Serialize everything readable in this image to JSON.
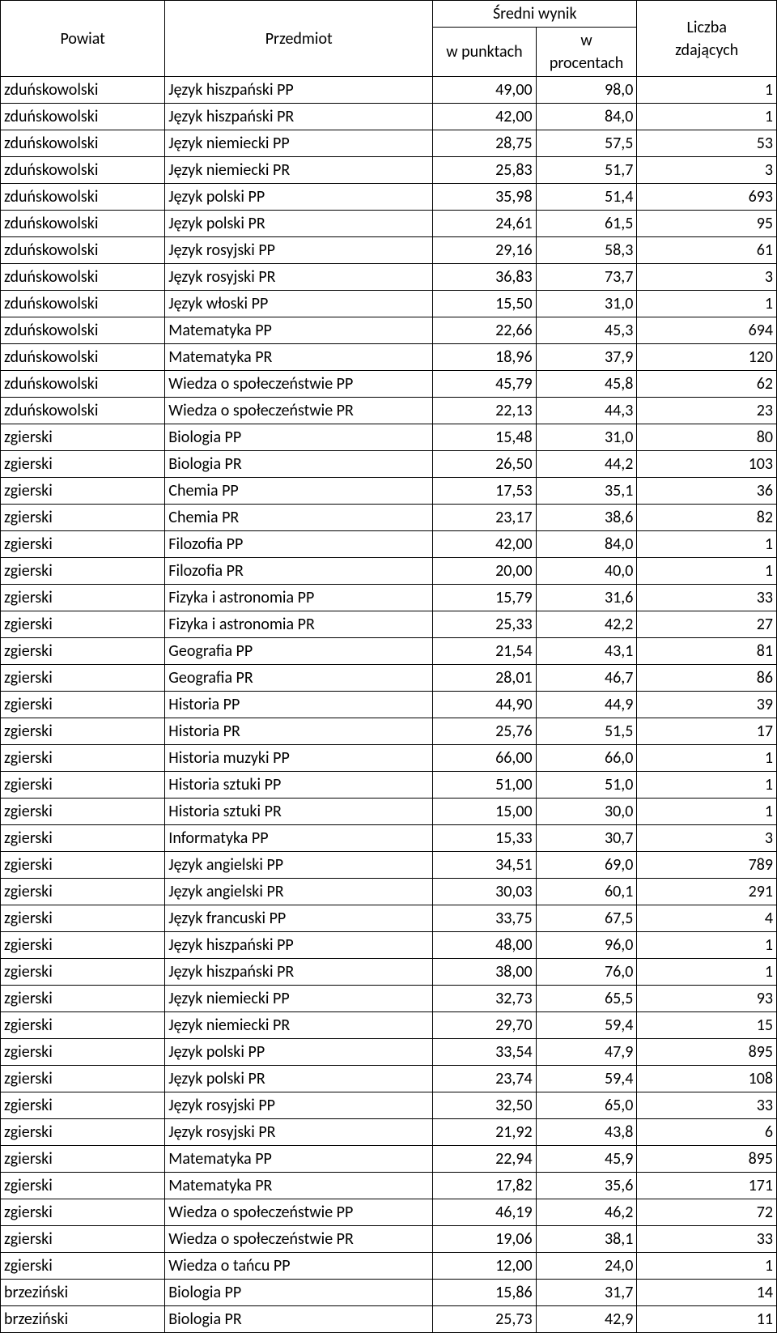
{
  "table": {
    "type": "table",
    "background_color": "#ffffff",
    "border_color": "#000000",
    "text_color": "#000000",
    "font_family": "Calibri",
    "font_size_pt": 15,
    "headers": {
      "powiat": "Powiat",
      "przedmiot": "Przedmiot",
      "sredni_wynik": "Średni wynik",
      "w_punktach": "w punktach",
      "w_procentach_line1": "w",
      "w_procentach_line2": "procentach",
      "liczba_line1": "Liczba",
      "liczba_line2": "zdających"
    },
    "column_widths_percent": [
      21.2,
      34.5,
      13.3,
      13.0,
      18.0
    ],
    "column_alignments": [
      "left",
      "left",
      "right",
      "right",
      "right"
    ],
    "rows": [
      [
        "zduńskowolski",
        "Język hiszpański PP",
        "49,00",
        "98,0",
        "1"
      ],
      [
        "zduńskowolski",
        "Język hiszpański PR",
        "42,00",
        "84,0",
        "1"
      ],
      [
        "zduńskowolski",
        "Język niemiecki PP",
        "28,75",
        "57,5",
        "53"
      ],
      [
        "zduńskowolski",
        "Język niemiecki PR",
        "25,83",
        "51,7",
        "3"
      ],
      [
        "zduńskowolski",
        "Język polski PP",
        "35,98",
        "51,4",
        "693"
      ],
      [
        "zduńskowolski",
        "Język polski PR",
        "24,61",
        "61,5",
        "95"
      ],
      [
        "zduńskowolski",
        "Język rosyjski PP",
        "29,16",
        "58,3",
        "61"
      ],
      [
        "zduńskowolski",
        "Język rosyjski PR",
        "36,83",
        "73,7",
        "3"
      ],
      [
        "zduńskowolski",
        "Język włoski PP",
        "15,50",
        "31,0",
        "1"
      ],
      [
        "zduńskowolski",
        "Matematyka PP",
        "22,66",
        "45,3",
        "694"
      ],
      [
        "zduńskowolski",
        "Matematyka PR",
        "18,96",
        "37,9",
        "120"
      ],
      [
        "zduńskowolski",
        "Wiedza o społeczeństwie PP",
        "45,79",
        "45,8",
        "62"
      ],
      [
        "zduńskowolski",
        "Wiedza o społeczeństwie PR",
        "22,13",
        "44,3",
        "23"
      ],
      [
        "zgierski",
        "Biologia PP",
        "15,48",
        "31,0",
        "80"
      ],
      [
        "zgierski",
        "Biologia PR",
        "26,50",
        "44,2",
        "103"
      ],
      [
        "zgierski",
        "Chemia PP",
        "17,53",
        "35,1",
        "36"
      ],
      [
        "zgierski",
        "Chemia PR",
        "23,17",
        "38,6",
        "82"
      ],
      [
        "zgierski",
        "Filozofia PP",
        "42,00",
        "84,0",
        "1"
      ],
      [
        "zgierski",
        "Filozofia PR",
        "20,00",
        "40,0",
        "1"
      ],
      [
        "zgierski",
        "Fizyka i astronomia PP",
        "15,79",
        "31,6",
        "33"
      ],
      [
        "zgierski",
        "Fizyka i astronomia PR",
        "25,33",
        "42,2",
        "27"
      ],
      [
        "zgierski",
        "Geografia PP",
        "21,54",
        "43,1",
        "81"
      ],
      [
        "zgierski",
        "Geografia PR",
        "28,01",
        "46,7",
        "86"
      ],
      [
        "zgierski",
        "Historia PP",
        "44,90",
        "44,9",
        "39"
      ],
      [
        "zgierski",
        "Historia PR",
        "25,76",
        "51,5",
        "17"
      ],
      [
        "zgierski",
        "Historia muzyki PP",
        "66,00",
        "66,0",
        "1"
      ],
      [
        "zgierski",
        "Historia sztuki PP",
        "51,00",
        "51,0",
        "1"
      ],
      [
        "zgierski",
        "Historia sztuki PR",
        "15,00",
        "30,0",
        "1"
      ],
      [
        "zgierski",
        "Informatyka PP",
        "15,33",
        "30,7",
        "3"
      ],
      [
        "zgierski",
        "Język angielski PP",
        "34,51",
        "69,0",
        "789"
      ],
      [
        "zgierski",
        "Język angielski PR",
        "30,03",
        "60,1",
        "291"
      ],
      [
        "zgierski",
        "Język francuski PP",
        "33,75",
        "67,5",
        "4"
      ],
      [
        "zgierski",
        "Język hiszpański PP",
        "48,00",
        "96,0",
        "1"
      ],
      [
        "zgierski",
        "Język hiszpański PR",
        "38,00",
        "76,0",
        "1"
      ],
      [
        "zgierski",
        "Język niemiecki PP",
        "32,73",
        "65,5",
        "93"
      ],
      [
        "zgierski",
        "Język niemiecki PR",
        "29,70",
        "59,4",
        "15"
      ],
      [
        "zgierski",
        "Język polski PP",
        "33,54",
        "47,9",
        "895"
      ],
      [
        "zgierski",
        "Język polski PR",
        "23,74",
        "59,4",
        "108"
      ],
      [
        "zgierski",
        "Język rosyjski PP",
        "32,50",
        "65,0",
        "33"
      ],
      [
        "zgierski",
        "Język rosyjski PR",
        "21,92",
        "43,8",
        "6"
      ],
      [
        "zgierski",
        "Matematyka PP",
        "22,94",
        "45,9",
        "895"
      ],
      [
        "zgierski",
        "Matematyka PR",
        "17,82",
        "35,6",
        "171"
      ],
      [
        "zgierski",
        "Wiedza o społeczeństwie PP",
        "46,19",
        "46,2",
        "72"
      ],
      [
        "zgierski",
        "Wiedza o społeczeństwie PR",
        "19,06",
        "38,1",
        "33"
      ],
      [
        "zgierski",
        "Wiedza o tańcu PP",
        "12,00",
        "24,0",
        "1"
      ],
      [
        "brzeziński",
        "Biologia PP",
        "15,86",
        "31,7",
        "14"
      ],
      [
        "brzeziński",
        "Biologia PR",
        "25,73",
        "42,9",
        "11"
      ]
    ]
  }
}
